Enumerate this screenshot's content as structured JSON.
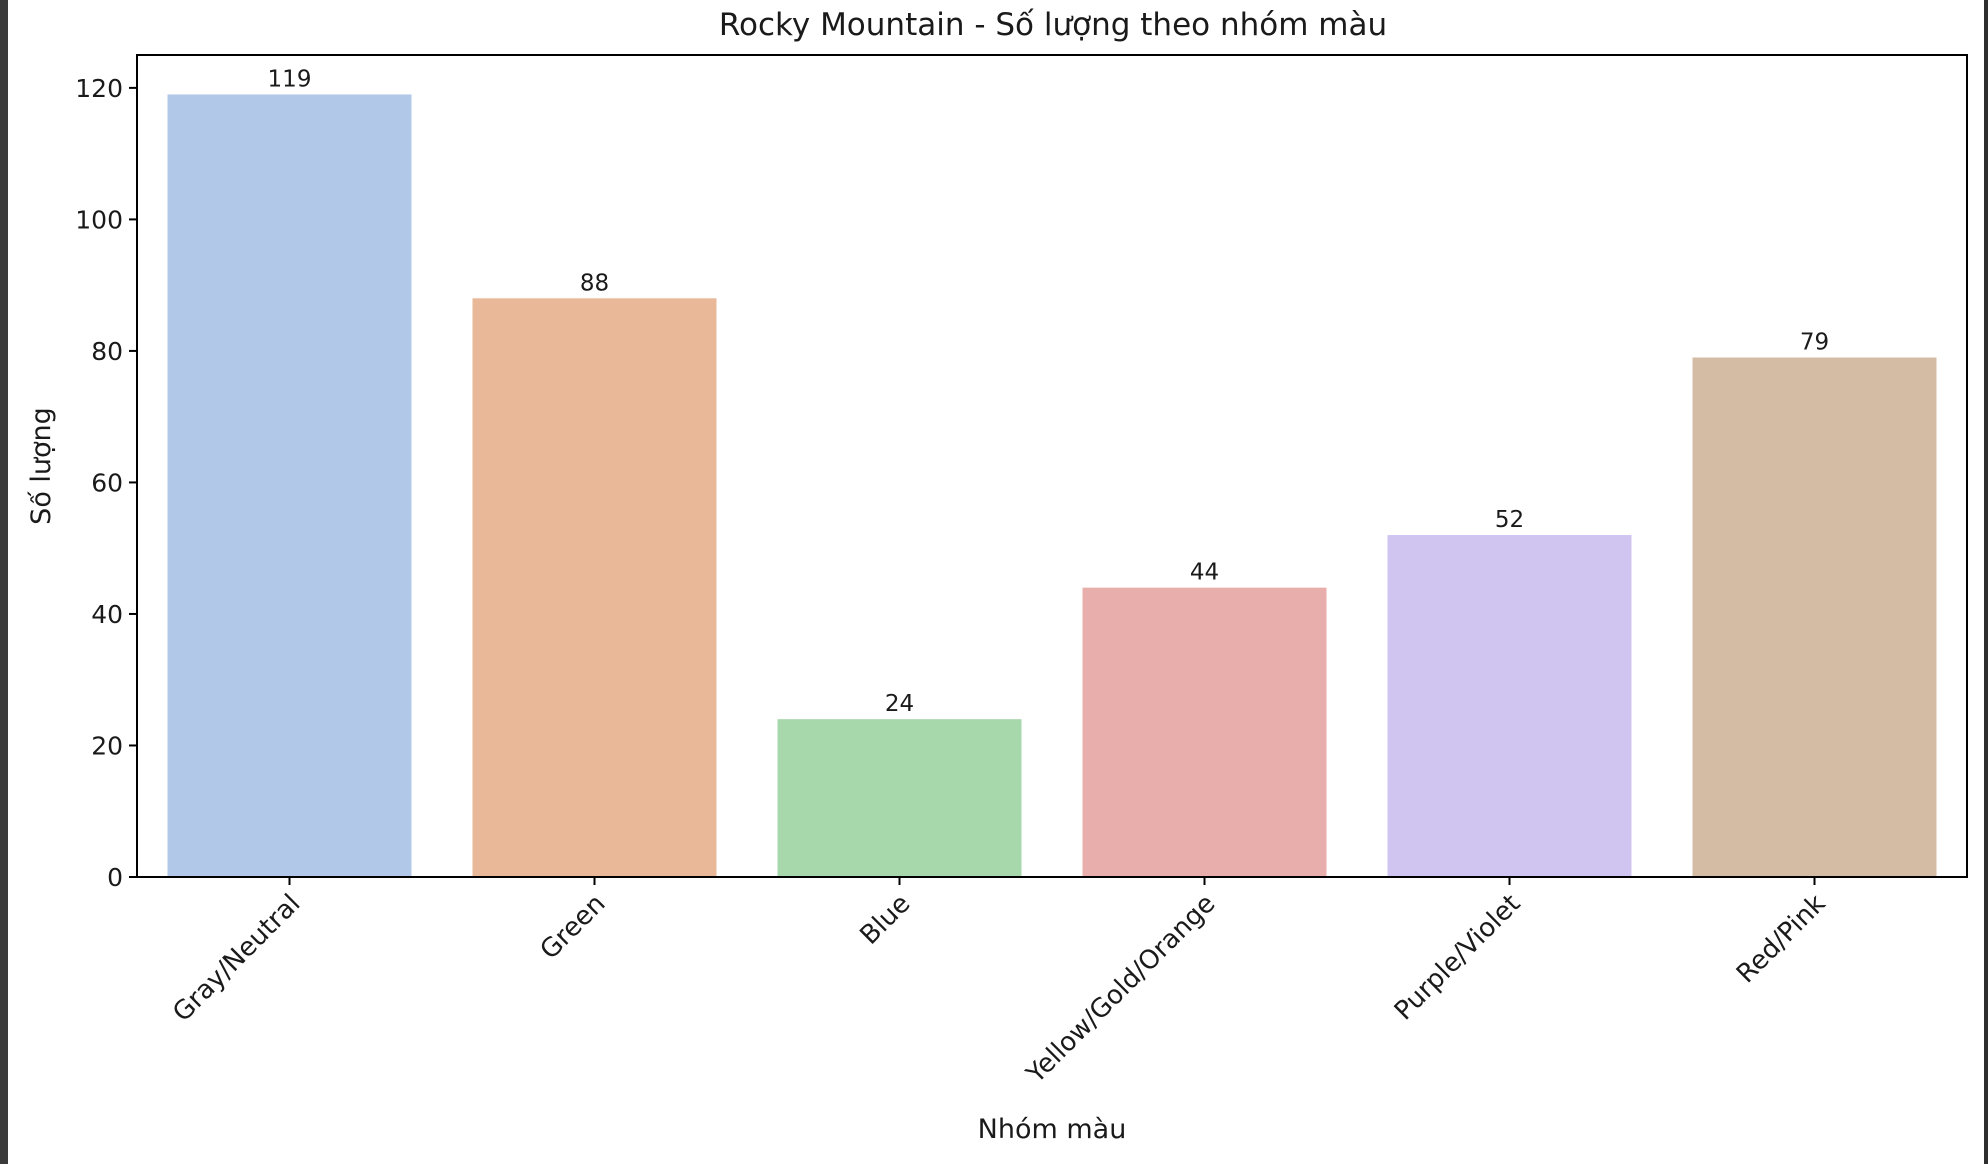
{
  "chart_data": {
    "type": "bar",
    "title": "Rocky Mountain - Số lượng theo nhóm màu",
    "xlabel": "Nhóm màu",
    "ylabel": "Số lượng",
    "categories": [
      "Gray/Neutral",
      "Green",
      "Blue",
      "Yellow/Gold/Orange",
      "Purple/Violet",
      "Red/Pink"
    ],
    "values": [
      119,
      88,
      24,
      44,
      52,
      79
    ],
    "colors": [
      "#b1c8e8",
      "#e8b898",
      "#a7d8ab",
      "#e8aeab",
      "#d0c4f1",
      "#d4bba4"
    ],
    "ylim": [
      0,
      125
    ],
    "yticks": [
      0,
      20,
      40,
      60,
      80,
      100,
      120
    ],
    "grid": false,
    "legend": "none"
  }
}
